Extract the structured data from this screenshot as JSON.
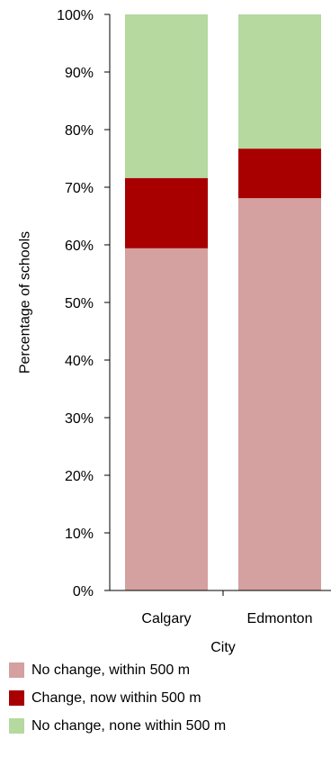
{
  "chart_data": {
    "type": "bar",
    "stacked": true,
    "categories": [
      "Calgary",
      "Edmonton"
    ],
    "series": [
      {
        "name": "No change, within 500 m",
        "color": "#d4a0a0",
        "values": [
          59.4,
          68.1
        ]
      },
      {
        "name": "Change, now within 500 m",
        "color": "#a80000",
        "values": [
          12.2,
          8.6
        ]
      },
      {
        "name": "No change, none within 500 m",
        "color": "#b5d99f",
        "values": [
          28.4,
          23.3
        ]
      }
    ],
    "xlabel": "City",
    "ylabel": "Percentage of schools",
    "ylim": [
      0,
      100
    ],
    "yticks": [
      "0%",
      "10%",
      "20%",
      "30%",
      "40%",
      "50%",
      "60%",
      "70%",
      "80%",
      "90%",
      "100%"
    ],
    "legend_position": "bottom",
    "grid": false
  }
}
